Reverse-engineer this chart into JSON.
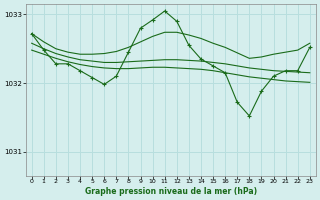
{
  "bg_color": "#d5eeed",
  "grid_color": "#b8dede",
  "line_color": "#1a6b1a",
  "xlabel": "Graphe pression niveau de la mer (hPa)",
  "ylabel_ticks": [
    1031,
    1032,
    1033
  ],
  "xlim": [
    -0.5,
    23.5
  ],
  "ylim": [
    1030.65,
    1033.15
  ],
  "hours": [
    0,
    1,
    2,
    3,
    4,
    5,
    6,
    7,
    8,
    9,
    10,
    11,
    12,
    13,
    14,
    15,
    16,
    17,
    18,
    19,
    20,
    21,
    22,
    23
  ],
  "line_spiky": [
    1032.72,
    1032.48,
    1032.28,
    1032.28,
    1032.18,
    1032.08,
    1031.98,
    1032.1,
    1032.45,
    1032.8,
    1032.92,
    1033.05,
    1032.9,
    1032.55,
    1032.35,
    1032.25,
    1032.15,
    1031.72,
    1031.52,
    1031.88,
    1032.1,
    1032.18,
    1032.18,
    1032.52
  ],
  "line_smooth1": [
    1032.58,
    1032.5,
    1032.43,
    1032.38,
    1032.34,
    1032.32,
    1032.3,
    1032.3,
    1032.31,
    1032.32,
    1032.33,
    1032.34,
    1032.34,
    1032.33,
    1032.32,
    1032.3,
    1032.28,
    1032.25,
    1032.22,
    1032.2,
    1032.18,
    1032.17,
    1032.16,
    1032.15
  ],
  "line_smooth2": [
    1032.48,
    1032.42,
    1032.36,
    1032.31,
    1032.27,
    1032.24,
    1032.22,
    1032.21,
    1032.21,
    1032.22,
    1032.23,
    1032.23,
    1032.22,
    1032.21,
    1032.2,
    1032.18,
    1032.15,
    1032.12,
    1032.09,
    1032.07,
    1032.05,
    1032.03,
    1032.02,
    1032.01
  ],
  "line_upper": [
    1032.72,
    1032.6,
    1032.5,
    1032.45,
    1032.42,
    1032.42,
    1032.43,
    1032.46,
    1032.52,
    1032.6,
    1032.68,
    1032.74,
    1032.74,
    1032.7,
    1032.65,
    1032.58,
    1032.52,
    1032.44,
    1032.36,
    1032.38,
    1032.42,
    1032.45,
    1032.48,
    1032.58
  ]
}
